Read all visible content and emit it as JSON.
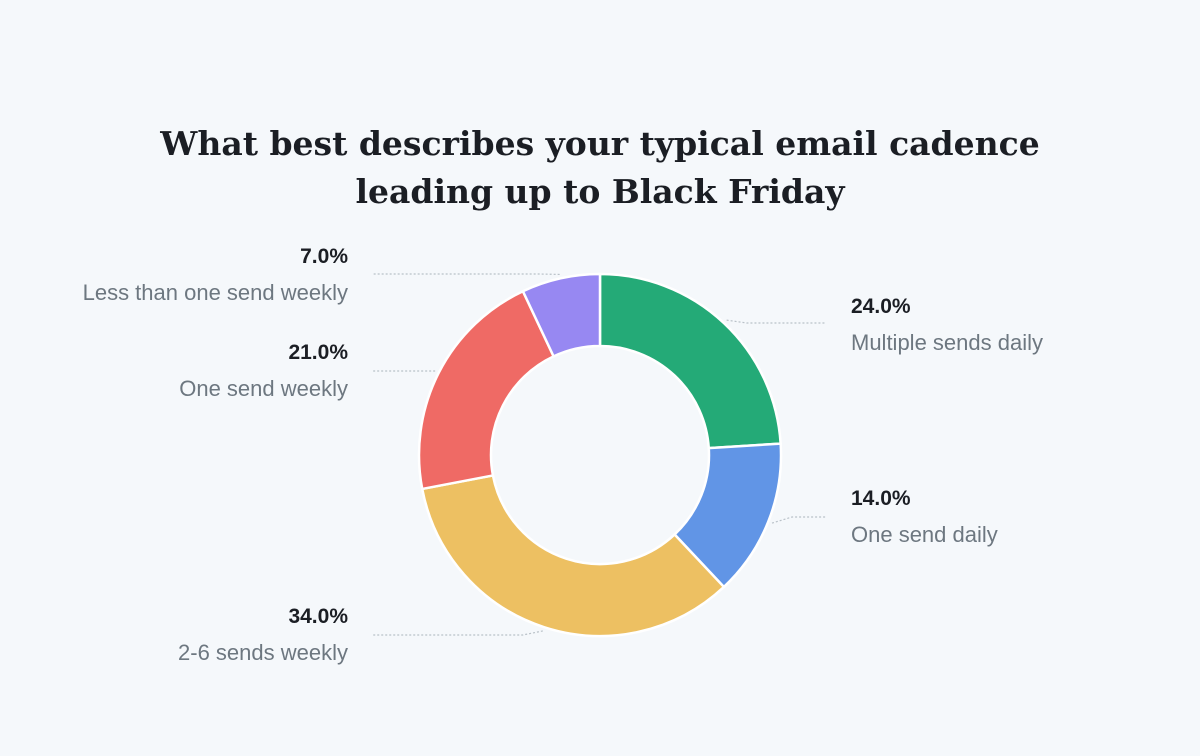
{
  "title_lines": [
    "What best describes your typical email cadence",
    "leading up to Black Friday"
  ],
  "colors": {
    "background": "#f5f8fb",
    "title": "#1b1e24",
    "label_name": "#6d7780",
    "leader_line": "#b9c1c8"
  },
  "chart_data": {
    "type": "pie",
    "variant": "donut",
    "title": "What best describes your typical email cadence leading up to Black Friday",
    "unit": "%",
    "slices": [
      {
        "label": "Multiple sends daily",
        "value": 24.0,
        "pct_label": "24.0%",
        "color": "#24aa77"
      },
      {
        "label": "One send daily",
        "value": 14.0,
        "pct_label": "14.0%",
        "color": "#6195e6"
      },
      {
        "label": "2-6 sends weekly",
        "value": 34.0,
        "pct_label": "34.0%",
        "color": "#edc062"
      },
      {
        "label": "One send weekly",
        "value": 21.0,
        "pct_label": "21.0%",
        "color": "#ef6a65"
      },
      {
        "label": "Less than one send weekly",
        "value": 7.0,
        "pct_label": "7.0%",
        "color": "#9788f2"
      }
    ],
    "start_angle": "12 o'clock",
    "direction": "clockwise",
    "legend": "none (direct labels)"
  }
}
